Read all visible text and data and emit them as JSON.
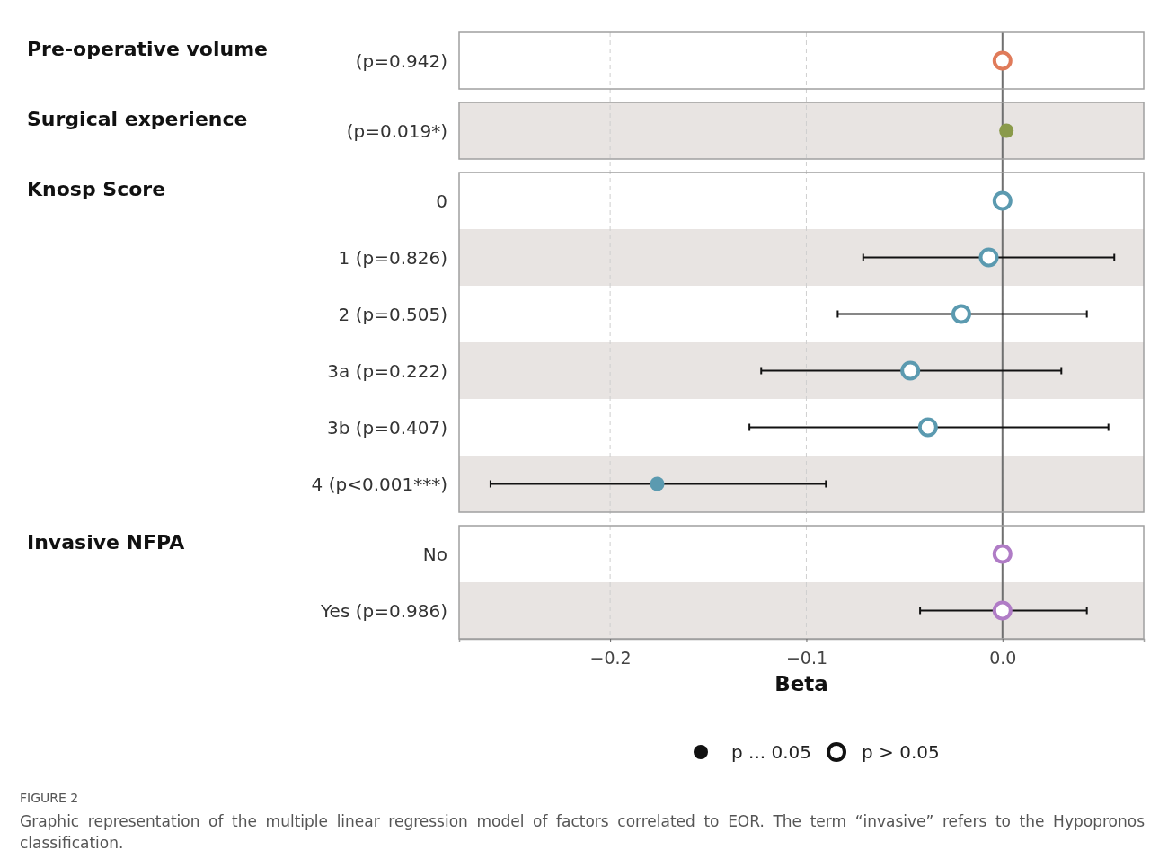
{
  "chart_data": {
    "type": "scatter",
    "orientation": "horizontal",
    "categories": [
      "(p=0.942)",
      "(p=0.019*)",
      "0",
      "1 (p=0.826)",
      "2 (p=0.505)",
      "3a (p=0.222)",
      "3b (p=0.407)",
      "4 (p<0.001***)",
      "No",
      "Yes (p=0.986)"
    ],
    "xlim": [
      -0.277,
      0.072
    ],
    "xticks": [
      {
        "value": -0.2,
        "label": "−0.2"
      },
      {
        "value": -0.1,
        "label": "−0.1"
      },
      {
        "value": 0,
        "label": "0.0"
      }
    ],
    "xlabel": "Beta",
    "grid": "x",
    "ref_lines": [
      {
        "axis": "x",
        "value": 0,
        "color": "#707070"
      }
    ],
    "bands": [
      {
        "axis": "y",
        "from": "(p=0.019*)",
        "to": "(p=0.019*)",
        "color": "#e8e4e2"
      },
      {
        "axis": "y",
        "from": "1 (p=0.826)",
        "to": "1 (p=0.826)",
        "color": "#e8e4e2"
      },
      {
        "axis": "y",
        "from": "3a (p=0.222)",
        "to": "3a (p=0.222)",
        "color": "#e8e4e2"
      },
      {
        "axis": "y",
        "from": "4 (p<0.001***)",
        "to": "4 (p<0.001***)",
        "color": "#e8e4e2"
      },
      {
        "axis": "y",
        "from": "Yes (p=0.986)",
        "to": "Yes (p=0.986)",
        "color": "#e8e4e2"
      }
    ],
    "annotations": [
      "Pre-operative volume",
      "Surgical experience",
      "Knosp Score",
      "Invasive NFPA",
      "p ... 0.05",
      "p > 0.05",
      "FIGURE 2",
      "Graphic representation of the multiple linear regression model of factors correlated to EOR. The term “invasive” refers to the Hypopronos classification."
    ],
    "series": [
      {
        "color": "#111111",
        "colors": [
          null,
          "#8a9a4a",
          null,
          null,
          null,
          null,
          null,
          "#5b9ab0",
          null,
          null
        ],
        "values": [
          null,
          0.002,
          null,
          null,
          null,
          null,
          null,
          -0.176,
          null,
          null
        ],
        "errors": [
          null,
          null,
          null,
          null,
          null,
          null,
          null,
          [
            -0.261,
            -0.09
          ],
          null,
          null
        ]
      },
      {
        "color": "#111111",
        "colors": [
          "#e07b5a",
          null,
          "#5b9ab0",
          "#5b9ab0",
          "#5b9ab0",
          "#5b9ab0",
          "#5b9ab0",
          null,
          "#b07cc6",
          "#b07cc6"
        ],
        "values": [
          0,
          null,
          0,
          -0.007,
          -0.021,
          -0.047,
          -0.038,
          null,
          0,
          0
        ],
        "errors": [
          null,
          null,
          null,
          [
            -0.071,
            0.057
          ],
          [
            -0.084,
            0.043
          ],
          [
            -0.123,
            0.03
          ],
          [
            -0.129,
            0.054
          ],
          null,
          null,
          [
            -0.042,
            0.043
          ]
        ]
      }
    ]
  }
}
